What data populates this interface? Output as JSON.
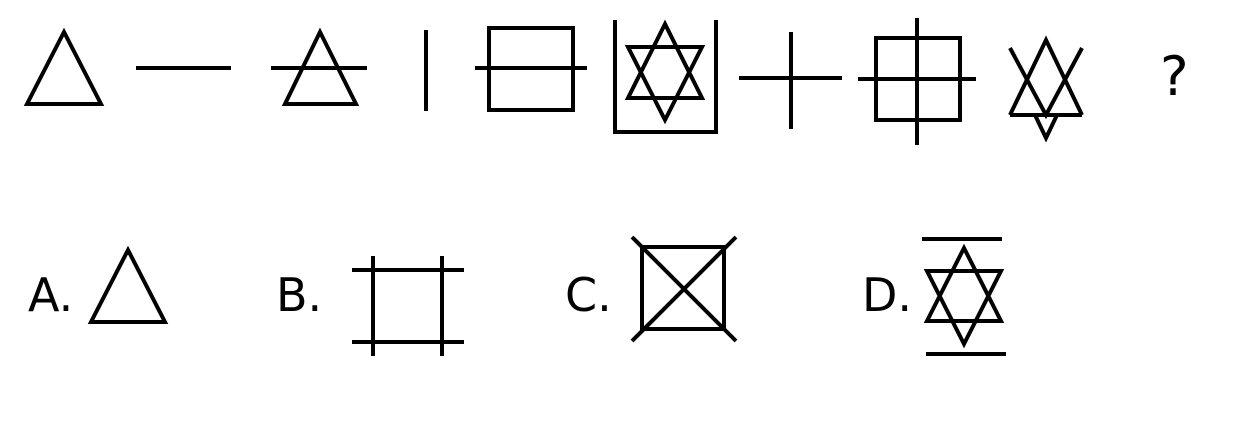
{
  "question_mark": "?",
  "options": [
    {
      "letter": "A.",
      "figure": "triangle"
    },
    {
      "letter": "B.",
      "figure": "hash-square"
    },
    {
      "letter": "C.",
      "figure": "crossed-square"
    },
    {
      "letter": "D.",
      "figure": "hexagram-with-bars"
    }
  ],
  "sequence": [
    "triangle",
    "horizontal-line",
    "triangle-with-horizontal-line",
    "vertical-line",
    "square-with-horizontal-line",
    "hexagram-in-open-box",
    "plus",
    "square-with-plus",
    "hexagram-open-top"
  ],
  "colors": {
    "stroke": "#000000",
    "background": "#ffffff"
  }
}
